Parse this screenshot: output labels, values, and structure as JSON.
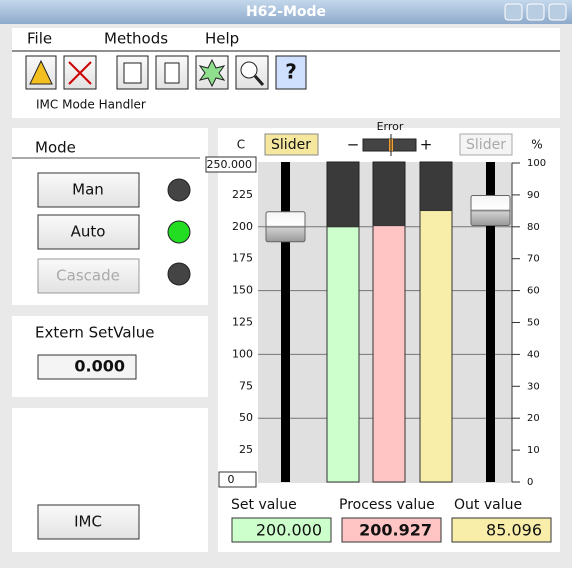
{
  "window": {
    "title": "H62-Mode"
  },
  "menu": [
    "File",
    "Methods",
    "Help"
  ],
  "toolbar": {
    "label": "IMC Mode Handler"
  },
  "mode": {
    "title": "Mode",
    "buttons": [
      "Man",
      "Auto",
      "Cascade"
    ]
  },
  "extern": {
    "title": "Extern SetValue",
    "value": "0.000"
  },
  "imc_button": "IMC",
  "gauge": {
    "left_unit": "C",
    "slider_left": "Slider",
    "error_label": "Error",
    "minus": "−",
    "plus": "+",
    "slider_right": "Slider",
    "right_unit": "%",
    "left_max_label": "250.000",
    "left_min_label": "0",
    "ylim": [
      0,
      250
    ],
    "yticks": [
      25,
      50,
      75,
      100,
      125,
      150,
      175,
      200,
      225
    ],
    "y2lim": [
      0,
      100
    ],
    "y2ticks": [
      0,
      10,
      20,
      30,
      40,
      50,
      60,
      70,
      80,
      90,
      100
    ],
    "bars": [
      {
        "name": "Set value",
        "value": 200,
        "value_label": "200.000",
        "color": "#ccffcc",
        "axis": "y"
      },
      {
        "name": "Process value",
        "value": 200.927,
        "value_label": "200.927",
        "color": "#ffc4c4",
        "axis": "y"
      },
      {
        "name": "Out value",
        "value": 85.096,
        "value_label": "85.096",
        "color": "#f8eeaa",
        "axis": "y2"
      }
    ]
  }
}
